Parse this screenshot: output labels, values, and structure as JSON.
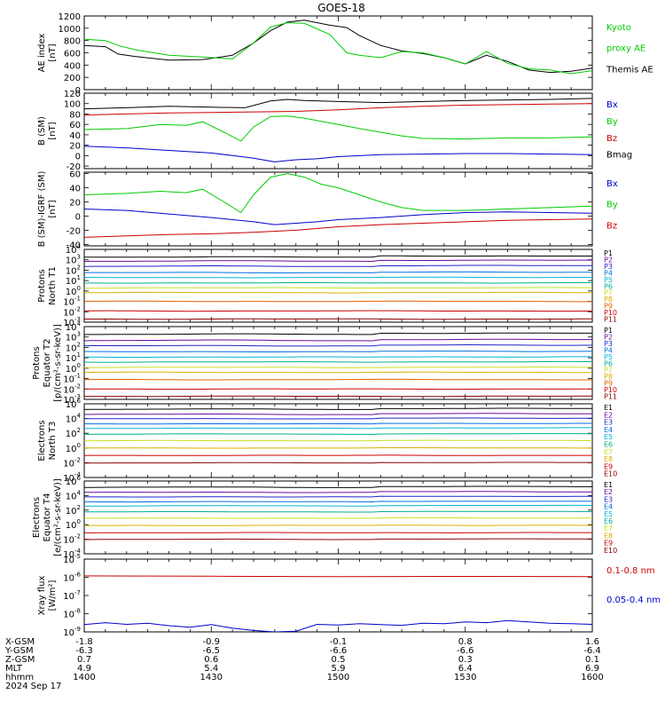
{
  "title": "GOES-18",
  "date_label": "2024 Sep 17",
  "ephemeris": {
    "rows": [
      {
        "label": "X-GSM",
        "values": [
          "-1.8",
          "-0.9",
          "-0.1",
          "0.8",
          "1.6"
        ]
      },
      {
        "label": "Y-GSM",
        "values": [
          "-6.3",
          "-6.5",
          "-6.6",
          "-6.6",
          "-6.4"
        ]
      },
      {
        "label": "Z-GSM",
        "values": [
          "0.7",
          "0.6",
          "0.5",
          "0.3",
          "0.1"
        ]
      },
      {
        "label": "MLT",
        "values": [
          "4.9",
          "5.4",
          "5.9",
          "6.4",
          "6.9"
        ]
      },
      {
        "label": "hhmm",
        "values": [
          "1400",
          "1430",
          "1500",
          "1530",
          "1600"
        ]
      }
    ]
  },
  "chart_data": [
    {
      "type": "line",
      "ylabel": [
        "AE index",
        "[nT]"
      ],
      "scale": "linear",
      "ylim": [
        0,
        1200
      ],
      "yticks": [
        0,
        200,
        400,
        600,
        800,
        1000,
        1200
      ],
      "x_range_minutes": [
        0,
        120
      ],
      "legend": [
        {
          "text": "Kyoto",
          "color": "#00cc00"
        },
        {
          "text": "proxy AE",
          "color": "#00cc00"
        },
        {
          "text": "Themis AE",
          "color": "#000000"
        }
      ],
      "series": [
        {
          "name": "Themis AE",
          "color": "#000000",
          "x": [
            0,
            5,
            8,
            12,
            20,
            28,
            35,
            40,
            44,
            48,
            52,
            58,
            62,
            65,
            70,
            75,
            80,
            85,
            90,
            95,
            100,
            105,
            110,
            115,
            120
          ],
          "y": [
            720,
            700,
            580,
            540,
            480,
            490,
            560,
            760,
            960,
            1100,
            1130,
            1050,
            1010,
            880,
            720,
            630,
            590,
            520,
            420,
            560,
            460,
            320,
            280,
            300,
            350
          ]
        },
        {
          "name": "Kyoto proxy AE",
          "color": "#00cc00",
          "x": [
            0,
            5,
            8,
            12,
            20,
            28,
            35,
            40,
            44,
            48,
            52,
            58,
            62,
            65,
            70,
            75,
            80,
            85,
            90,
            95,
            100,
            105,
            110,
            115,
            120
          ],
          "y": [
            820,
            800,
            720,
            650,
            560,
            530,
            500,
            760,
            1020,
            1090,
            1080,
            900,
            600,
            560,
            520,
            620,
            600,
            520,
            420,
            620,
            430,
            340,
            320,
            260,
            310
          ]
        }
      ]
    },
    {
      "type": "line",
      "ylabel": [
        "B (SM)",
        "[nT]"
      ],
      "scale": "linear",
      "ylim": [
        -25,
        120
      ],
      "yticks": [
        -20,
        0,
        20,
        40,
        60,
        80,
        100,
        120
      ],
      "x_range_minutes": [
        0,
        120
      ],
      "legend": [
        {
          "text": "Bx",
          "color": "#0000cc"
        },
        {
          "text": "By",
          "color": "#00cc00"
        },
        {
          "text": "Bz",
          "color": "#cc0000"
        },
        {
          "text": "Bmag",
          "color": "#000000"
        }
      ],
      "series": [
        {
          "name": "Bx",
          "color": "#0000cc",
          "x": [
            0,
            10,
            20,
            30,
            35,
            40,
            45,
            50,
            55,
            60,
            70,
            80,
            90,
            100,
            110,
            120
          ],
          "y": [
            18,
            15,
            10,
            5,
            0,
            -5,
            -12,
            -8,
            -6,
            -2,
            2,
            3,
            4,
            4,
            3,
            2
          ]
        },
        {
          "name": "By",
          "color": "#00cc00",
          "x": [
            0,
            10,
            18,
            24,
            28,
            33,
            37,
            40,
            44,
            48,
            52,
            56,
            60,
            65,
            70,
            75,
            80,
            90,
            100,
            110,
            120
          ],
          "y": [
            50,
            52,
            60,
            58,
            65,
            45,
            28,
            55,
            75,
            76,
            72,
            66,
            60,
            52,
            45,
            38,
            33,
            32,
            34,
            34,
            36
          ]
        },
        {
          "name": "Bz",
          "color": "#cc0000",
          "x": [
            0,
            10,
            20,
            30,
            40,
            50,
            60,
            70,
            80,
            90,
            100,
            110,
            120
          ],
          "y": [
            78,
            80,
            82,
            83,
            84,
            85,
            88,
            92,
            95,
            97,
            98,
            99,
            100
          ]
        },
        {
          "name": "Bmag",
          "color": "#000000",
          "x": [
            0,
            10,
            20,
            30,
            38,
            44,
            48,
            52,
            60,
            70,
            80,
            90,
            100,
            110,
            120
          ],
          "y": [
            90,
            92,
            95,
            93,
            92,
            105,
            108,
            106,
            104,
            102,
            104,
            106,
            107,
            108,
            110
          ]
        }
      ]
    },
    {
      "type": "line",
      "ylabel": [
        "B (SM)-IGRF (SM)",
        "[nT]"
      ],
      "scale": "linear",
      "ylim": [
        -42,
        62
      ],
      "yticks": [
        -40,
        -20,
        0,
        20,
        40,
        60
      ],
      "x_range_minutes": [
        0,
        120
      ],
      "legend": [
        {
          "text": "Bx",
          "color": "#0000cc"
        },
        {
          "text": "By",
          "color": "#00cc00"
        },
        {
          "text": "Bz",
          "color": "#cc0000"
        }
      ],
      "series": [
        {
          "name": "Bx",
          "color": "#0000cc",
          "x": [
            0,
            10,
            20,
            30,
            35,
            40,
            45,
            50,
            55,
            60,
            70,
            80,
            90,
            100,
            110,
            120
          ],
          "y": [
            10,
            8,
            3,
            -2,
            -5,
            -8,
            -12,
            -10,
            -8,
            -5,
            -2,
            2,
            5,
            6,
            5,
            4
          ]
        },
        {
          "name": "By",
          "color": "#00cc00",
          "x": [
            0,
            10,
            18,
            24,
            28,
            33,
            37,
            40,
            44,
            48,
            52,
            56,
            60,
            65,
            70,
            75,
            80,
            90,
            100,
            110,
            120
          ],
          "y": [
            30,
            32,
            35,
            33,
            38,
            20,
            5,
            30,
            55,
            60,
            55,
            45,
            40,
            30,
            20,
            12,
            8,
            8,
            10,
            12,
            14
          ]
        },
        {
          "name": "Bz",
          "color": "#cc0000",
          "x": [
            0,
            10,
            20,
            30,
            40,
            50,
            60,
            70,
            80,
            90,
            100,
            110,
            120
          ],
          "y": [
            -30,
            -28,
            -26,
            -25,
            -23,
            -20,
            -15,
            -12,
            -10,
            -8,
            -6,
            -5,
            -4
          ]
        }
      ]
    },
    {
      "type": "line",
      "ylabel": [
        "Protons",
        "North T1"
      ],
      "scale": "log",
      "ylim": [
        0.001,
        10000
      ],
      "yticks": [
        {
          "base": "10",
          "exp": "-3",
          "value": 0.001
        },
        {
          "base": "10",
          "exp": "-2",
          "value": 0.01
        },
        {
          "base": "10",
          "exp": "-1",
          "value": 0.1
        },
        {
          "base": "10",
          "exp": "0",
          "value": 1
        },
        {
          "base": "10",
          "exp": "1",
          "value": 10
        },
        {
          "base": "10",
          "exp": "2",
          "value": 100
        },
        {
          "base": "10",
          "exp": "3",
          "value": 1000
        },
        {
          "base": "10",
          "exp": "4",
          "value": 10000
        }
      ],
      "x_range_minutes": [
        0,
        120
      ],
      "series_names": [
        "P1",
        "P2",
        "P3",
        "P4",
        "P5",
        "P6",
        "P7",
        "P8",
        "P9",
        "P10",
        "P11"
      ],
      "series_colors": [
        "#000000",
        "#6a0a9c",
        "#2222cc",
        "#0070e0",
        "#00b4d8",
        "#00b08a",
        "#c8e020",
        "#d8b000",
        "#e06000",
        "#cc0000",
        "#8a0000"
      ],
      "series_base": [
        2000,
        800,
        250,
        60,
        20,
        6,
        2.0,
        0.7,
        0.1,
        0.012,
        0.002
      ],
      "series_shape": [
        1,
        0.8,
        0.6,
        0.4,
        0.2,
        0.1,
        0.05,
        0,
        0,
        0,
        0
      ]
    },
    {
      "type": "line",
      "ylabel": [
        "Protons",
        "Equator T2",
        "[p/(cm²-s-sr-keV)]"
      ],
      "scale": "log",
      "ylim": [
        0.001,
        10000
      ],
      "yticks": [
        {
          "base": "10",
          "exp": "-3",
          "value": 0.001
        },
        {
          "base": "10",
          "exp": "-2",
          "value": 0.01
        },
        {
          "base": "10",
          "exp": "-1",
          "value": 0.1
        },
        {
          "base": "10",
          "exp": "0",
          "value": 1
        },
        {
          "base": "10",
          "exp": "1",
          "value": 10
        },
        {
          "base": "10",
          "exp": "2",
          "value": 100
        },
        {
          "base": "10",
          "exp": "3",
          "value": 1000
        },
        {
          "base": "10",
          "exp": "4",
          "value": 10000
        }
      ],
      "x_range_minutes": [
        0,
        120
      ],
      "series_names": [
        "P1",
        "P2",
        "P3",
        "P4",
        "P5",
        "P6",
        "P7",
        "P8",
        "P9",
        "P10",
        "P11"
      ],
      "series_colors": [
        "#000000",
        "#6a0a9c",
        "#2222cc",
        "#0070e0",
        "#00b4d8",
        "#00b08a",
        "#c8e020",
        "#d8b000",
        "#e06000",
        "#cc0000",
        "#8a0000"
      ],
      "series_base": [
        2000,
        500,
        150,
        40,
        12,
        4,
        1.2,
        0.4,
        0.08,
        0.01,
        0.002
      ],
      "series_shape": [
        1,
        0.8,
        0.6,
        0.4,
        0.2,
        0.1,
        0.05,
        0,
        0,
        0,
        0
      ]
    },
    {
      "type": "line",
      "ylabel": [
        "Electrons",
        "North T3"
      ],
      "scale": "log",
      "ylim": [
        0.0001,
        1000000
      ],
      "yticks": [
        {
          "base": "10",
          "exp": "-4",
          "value": 0.0001
        },
        {
          "base": "10",
          "exp": "-2",
          "value": 0.01
        },
        {
          "base": "10",
          "exp": "0",
          "value": 1
        },
        {
          "base": "10",
          "exp": "2",
          "value": 100
        },
        {
          "base": "10",
          "exp": "4",
          "value": 10000
        },
        {
          "base": "10",
          "exp": "6",
          "value": 1000000
        }
      ],
      "x_range_minutes": [
        0,
        120
      ],
      "series_names": [
        "E1",
        "E2",
        "E3",
        "E4",
        "E5",
        "E6",
        "E7",
        "E8",
        "E9",
        "E10"
      ],
      "series_colors": [
        "#000000",
        "#6a0a9c",
        "#2222cc",
        "#0070e0",
        "#00b4d8",
        "#00b08a",
        "#c8e020",
        "#d8b000",
        "#cc0000",
        "#8a0000"
      ],
      "series_base": [
        200000,
        40000,
        10000,
        2000,
        500,
        80,
        10,
        1,
        0.1,
        0.01
      ],
      "series_shape": [
        1,
        0.9,
        0.8,
        0.6,
        0.5,
        0.4,
        0.3,
        0.2,
        0.1,
        0.5
      ]
    },
    {
      "type": "line",
      "ylabel": [
        "Electrons",
        "Equator T4",
        "[e/(cm²-s-sr-keV)]"
      ],
      "scale": "log",
      "ylim": [
        0.0001,
        1000000
      ],
      "yticks": [
        {
          "base": "10",
          "exp": "-4",
          "value": 0.0001
        },
        {
          "base": "10",
          "exp": "-2",
          "value": 0.01
        },
        {
          "base": "10",
          "exp": "0",
          "value": 1
        },
        {
          "base": "10",
          "exp": "2",
          "value": 100
        },
        {
          "base": "10",
          "exp": "4",
          "value": 10000
        },
        {
          "base": "10",
          "exp": "6",
          "value": 1000000
        }
      ],
      "x_range_minutes": [
        0,
        120
      ],
      "series_names": [
        "E1",
        "E2",
        "E3",
        "E4",
        "E5",
        "E6",
        "E7",
        "E8",
        "E9",
        "E10"
      ],
      "series_colors": [
        "#000000",
        "#6a0a9c",
        "#2222cc",
        "#0070e0",
        "#00b4d8",
        "#00b08a",
        "#c8e020",
        "#d8b000",
        "#cc0000",
        "#8a0000"
      ],
      "series_base": [
        150000,
        30000,
        7000,
        1500,
        400,
        60,
        8,
        0.8,
        0.08,
        0.01
      ],
      "series_shape": [
        1,
        0.9,
        0.8,
        0.6,
        0.5,
        0.4,
        0.3,
        0.2,
        0.1,
        0.5
      ]
    },
    {
      "type": "line",
      "ylabel": [
        "Xray flux",
        "[W/m²]"
      ],
      "scale": "log",
      "ylim": [
        1e-09,
        1e-05
      ],
      "yticks": [
        {
          "base": "10",
          "exp": "-9",
          "value": 1e-09
        },
        {
          "base": "10",
          "exp": "-8",
          "value": 1e-08
        },
        {
          "base": "10",
          "exp": "-7",
          "value": 1e-07
        },
        {
          "base": "10",
          "exp": "-6",
          "value": 1e-06
        },
        {
          "base": "10",
          "exp": "-5",
          "value": 1e-05
        }
      ],
      "x_range_minutes": [
        0,
        120
      ],
      "legend": [
        {
          "text": "0.1-0.8 nm",
          "color": "#cc0000"
        },
        {
          "text": "0.05-0.4 nm",
          "color": "#0000cc"
        }
      ],
      "series": [
        {
          "name": "0.1-0.8 nm",
          "color": "#cc0000",
          "x": [
            0,
            30,
            60,
            90,
            120
          ],
          "y": [
            1.2e-06,
            1.15e-06,
            1.1e-06,
            1.12e-06,
            1.1e-06
          ]
        },
        {
          "name": "0.05-0.4 nm",
          "color": "#0000cc",
          "x": [
            0,
            5,
            10,
            15,
            20,
            25,
            30,
            35,
            40,
            45,
            50,
            55,
            60,
            65,
            70,
            75,
            80,
            85,
            90,
            95,
            100,
            105,
            110,
            115,
            120
          ],
          "y": [
            2.5e-09,
            3.2e-09,
            2.6e-09,
            3e-09,
            2.2e-09,
            1.8e-09,
            2.5e-09,
            1.6e-09,
            1.2e-09,
            1e-09,
            1.1e-09,
            2.6e-09,
            2.4e-09,
            2.8e-09,
            2.5e-09,
            2.3e-09,
            3e-09,
            2.8e-09,
            3.5e-09,
            3.2e-09,
            4.2e-09,
            3.5e-09,
            3e-09,
            2.8e-09,
            2.6e-09
          ]
        }
      ]
    }
  ]
}
